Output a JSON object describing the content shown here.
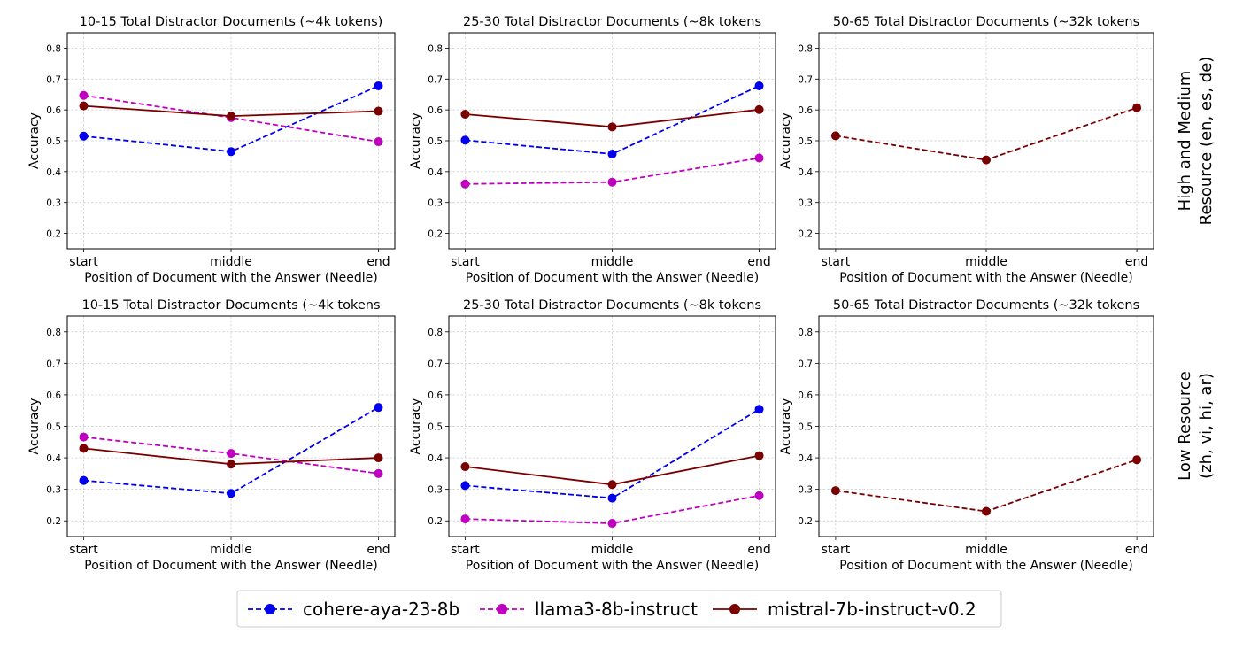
{
  "chart_data": {
    "type": "line",
    "categories": [
      "start",
      "middle",
      "end"
    ],
    "xlabel": "Position of Document with the Answer (Needle)",
    "ylabel": "Accuracy",
    "yticks": [
      0.2,
      0.3,
      0.4,
      0.5,
      0.6,
      0.7,
      0.8
    ],
    "ylim": [
      0.15,
      0.85
    ],
    "grid": true,
    "legend": {
      "placement": "bottom-center",
      "entries": [
        {
          "name": "cohere-aya-23-8b",
          "color": "#0000ee",
          "dash": true
        },
        {
          "name": "llama3-8b-instruct",
          "color": "#c000c0",
          "dash": true
        },
        {
          "name": "mistral-7b-instruct-v0.2",
          "color": "#7a0000",
          "dash": false
        }
      ]
    },
    "row_labels": [
      [
        "High and Medium",
        "Resource (en, es, de)"
      ],
      [
        "Low Resource",
        "(zh, vi, hi, ar)"
      ]
    ],
    "panels": [
      {
        "title": "10-15 Total Distractor Documents (~4k tokens)",
        "series": [
          {
            "name": "cohere-aya-23-8b",
            "values": [
              0.515,
              0.465,
              0.678
            ]
          },
          {
            "name": "llama3-8b-instruct",
            "values": [
              0.647,
              0.575,
              0.497
            ]
          },
          {
            "name": "mistral-7b-instruct-v0.2",
            "values": [
              0.613,
              0.58,
              0.596
            ]
          }
        ]
      },
      {
        "title": "25-30 Total Distractor Documents (~8k tokens",
        "series": [
          {
            "name": "cohere-aya-23-8b",
            "values": [
              0.502,
              0.457,
              0.678
            ]
          },
          {
            "name": "llama3-8b-instruct",
            "values": [
              0.36,
              0.366,
              0.444
            ]
          },
          {
            "name": "mistral-7b-instruct-v0.2",
            "values": [
              0.586,
              0.545,
              0.601
            ]
          }
        ]
      },
      {
        "title": "50-65 Total Distractor Documents (~32k tokens",
        "series": [
          {
            "name": "mistral-7b-instruct-v0.2",
            "values": [
              0.516,
              0.438,
              0.607
            ],
            "dash": true
          }
        ]
      },
      {
        "title": "10-15 Total Distractor Documents (~4k tokens",
        "series": [
          {
            "name": "cohere-aya-23-8b",
            "values": [
              0.328,
              0.287,
              0.56
            ]
          },
          {
            "name": "llama3-8b-instruct",
            "values": [
              0.466,
              0.414,
              0.35
            ]
          },
          {
            "name": "mistral-7b-instruct-v0.2",
            "values": [
              0.43,
              0.38,
              0.4
            ]
          }
        ]
      },
      {
        "title": "25-30 Total Distractor Documents (~8k tokens",
        "series": [
          {
            "name": "cohere-aya-23-8b",
            "values": [
              0.312,
              0.272,
              0.554
            ]
          },
          {
            "name": "llama3-8b-instruct",
            "values": [
              0.206,
              0.192,
              0.28
            ]
          },
          {
            "name": "mistral-7b-instruct-v0.2",
            "values": [
              0.372,
              0.315,
              0.407
            ]
          }
        ]
      },
      {
        "title": "50-65 Total Distractor Documents (~32k tokens",
        "series": [
          {
            "name": "mistral-7b-instruct-v0.2",
            "values": [
              0.296,
              0.23,
              0.394
            ],
            "dash": true
          }
        ]
      }
    ]
  }
}
